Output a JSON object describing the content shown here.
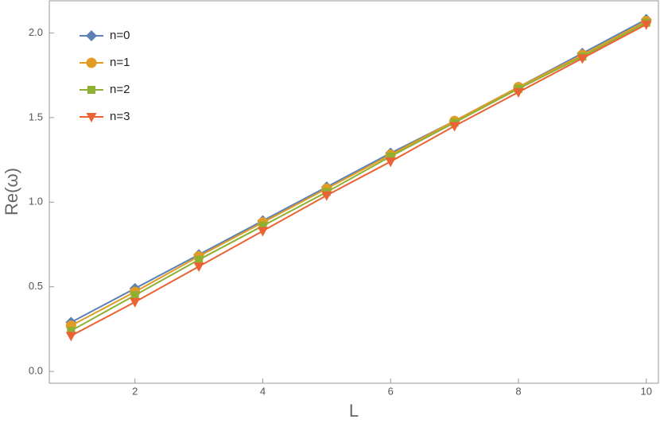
{
  "chart_data": {
    "type": "line",
    "xlabel": "L",
    "ylabel": "Re(ω)",
    "x": [
      1,
      2,
      3,
      4,
      5,
      6,
      7,
      8,
      9,
      10
    ],
    "series": [
      {
        "name": "n=0",
        "color": "#5e81b5",
        "marker": "diamond",
        "values": [
          0.29,
          0.49,
          0.69,
          0.89,
          1.09,
          1.29,
          1.48,
          1.68,
          1.88,
          2.08
        ]
      },
      {
        "name": "n=1",
        "color": "#e19c24",
        "marker": "circle",
        "values": [
          0.27,
          0.47,
          0.68,
          0.88,
          1.08,
          1.28,
          1.48,
          1.68,
          1.87,
          2.07
        ]
      },
      {
        "name": "n=2",
        "color": "#8fb032",
        "marker": "square",
        "values": [
          0.24,
          0.45,
          0.66,
          0.86,
          1.06,
          1.27,
          1.47,
          1.67,
          1.86,
          2.06
        ]
      },
      {
        "name": "n=3",
        "color": "#eb6235",
        "marker": "triangle-down",
        "values": [
          0.21,
          0.41,
          0.62,
          0.83,
          1.04,
          1.24,
          1.45,
          1.65,
          1.85,
          2.05
        ]
      }
    ],
    "xlim": [
      0.66,
      10.19
    ],
    "ylim": [
      -0.07,
      2.19
    ],
    "xticks": [
      2,
      4,
      6,
      8,
      10
    ],
    "yticks": [
      {
        "value": 0,
        "label": "0.0"
      },
      0.5,
      {
        "value": 1,
        "label": "1.0"
      },
      1.5,
      {
        "value": 2,
        "label": "2.0"
      }
    ],
    "legend": "upper-left"
  }
}
